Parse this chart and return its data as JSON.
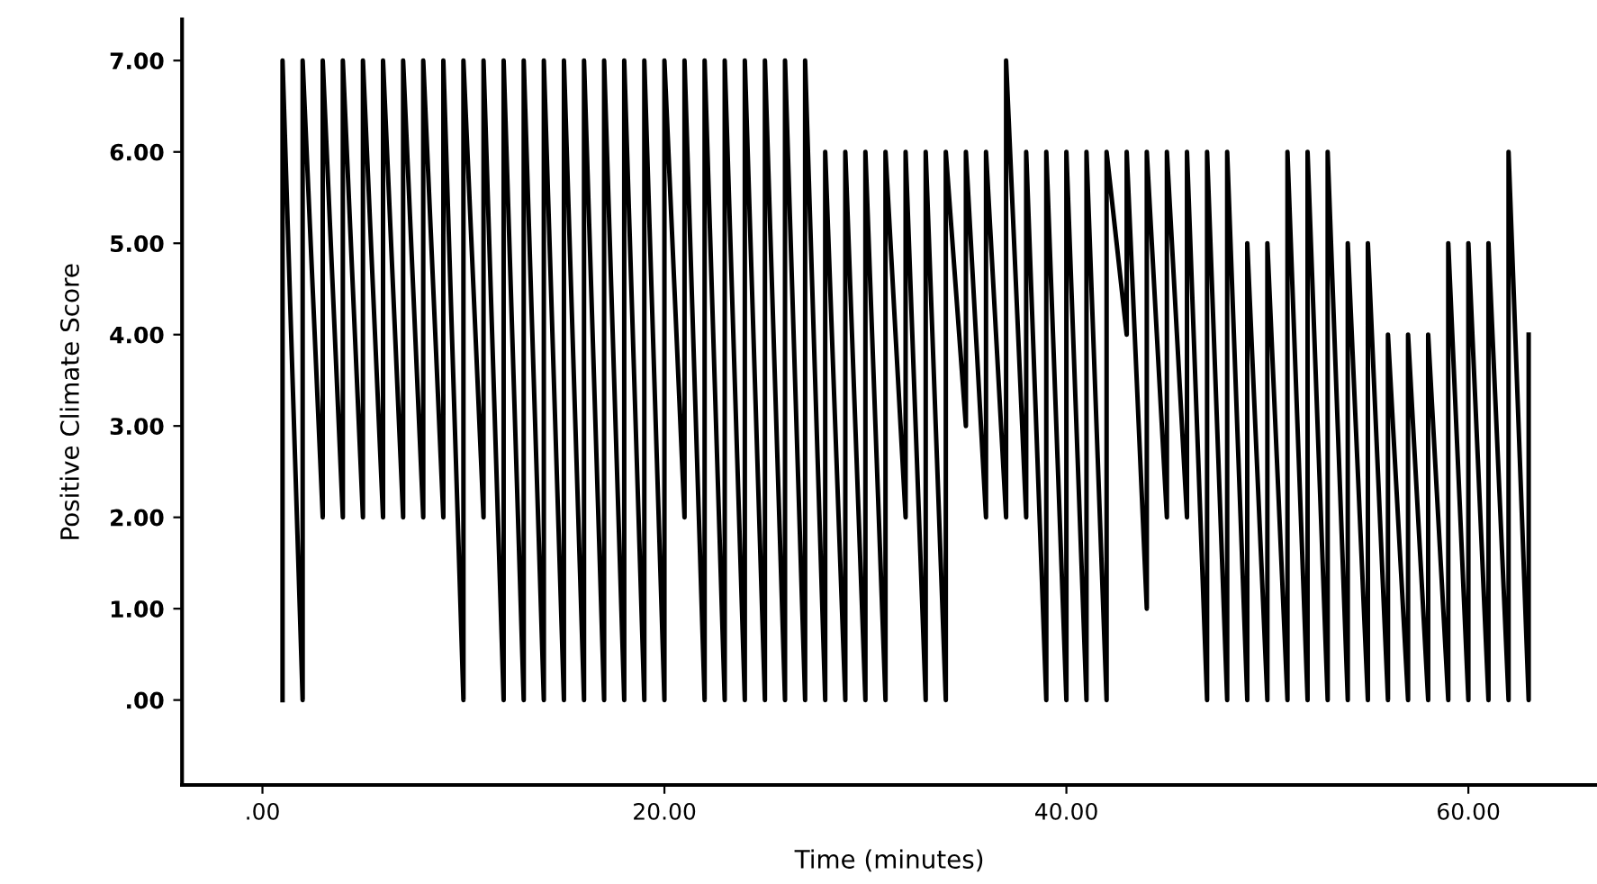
{
  "chart_data": {
    "type": "line",
    "xlabel": "Time (minutes)",
    "ylabel": "Positive Climate Score",
    "x": [
      1,
      1,
      2,
      2,
      3,
      3,
      4,
      4,
      5,
      5,
      6,
      6,
      7,
      7,
      8,
      8,
      9,
      9,
      10,
      10,
      11,
      11,
      12,
      12,
      13,
      13,
      14,
      14,
      15,
      15,
      16,
      16,
      17,
      17,
      18,
      18,
      19,
      19,
      20,
      20,
      21,
      21,
      22,
      22,
      23,
      23,
      24,
      24,
      25,
      25,
      26,
      26,
      27,
      27,
      28,
      28,
      29,
      29,
      30,
      30,
      31,
      31,
      32,
      32,
      33,
      33,
      34,
      34,
      35,
      35,
      36,
      36,
      37,
      37,
      38,
      38,
      39,
      39,
      40,
      40,
      41,
      41,
      42,
      42,
      43,
      43,
      44,
      44,
      45,
      45,
      46,
      46,
      47,
      47,
      48,
      48,
      49,
      49,
      50,
      50,
      51,
      51,
      52,
      52,
      53,
      53,
      54,
      54,
      55,
      55,
      56,
      56,
      57,
      57,
      58,
      58,
      59,
      59,
      60,
      60,
      61,
      61,
      62,
      62,
      63,
      63
    ],
    "series": [
      {
        "color": "#000000",
        "values": [
          0,
          7,
          0,
          7,
          2,
          7,
          2,
          7,
          2,
          7,
          2,
          7,
          2,
          7,
          2,
          7,
          2,
          7,
          0,
          7,
          2,
          7,
          0,
          7,
          0,
          7,
          0,
          7,
          0,
          7,
          0,
          7,
          0,
          7,
          0,
          7,
          0,
          7,
          0,
          7,
          2,
          7,
          0,
          7,
          0,
          7,
          0,
          7,
          0,
          7,
          0,
          7,
          0,
          7,
          0,
          6,
          0,
          6,
          0,
          6,
          0,
          6,
          2,
          6,
          0,
          6,
          0,
          6,
          3,
          6,
          2,
          6,
          2,
          7,
          2,
          6,
          0,
          6,
          0,
          6,
          0,
          6,
          0,
          6,
          4,
          6,
          1,
          6,
          2,
          6,
          2,
          6,
          0,
          6,
          0,
          6,
          0,
          5,
          0,
          5,
          0,
          6,
          0,
          6,
          0,
          6,
          0,
          5,
          0,
          5,
          0,
          4,
          0,
          4,
          0,
          4,
          0,
          5,
          0,
          5,
          0,
          5,
          0,
          6,
          0,
          4
        ]
      }
    ],
    "xlim": [
      -4,
      66.4
    ],
    "ylim": [
      -0.93,
      7.45
    ],
    "xticks": [
      {
        "value": 0,
        "label": ".00"
      },
      {
        "value": 20,
        "label": "20.00"
      },
      {
        "value": 40,
        "label": "40.00"
      },
      {
        "value": 60,
        "label": "60.00"
      }
    ],
    "yticks": [
      {
        "value": 0,
        "label": ".00"
      },
      {
        "value": 1,
        "label": "1.00"
      },
      {
        "value": 2,
        "label": "2.00"
      },
      {
        "value": 3,
        "label": "3.00"
      },
      {
        "value": 4,
        "label": "4.00"
      },
      {
        "value": 5,
        "label": "5.00"
      },
      {
        "value": 6,
        "label": "6.00"
      },
      {
        "value": 7,
        "label": "7.00"
      }
    ],
    "marker": "none",
    "line_style": "solid"
  }
}
